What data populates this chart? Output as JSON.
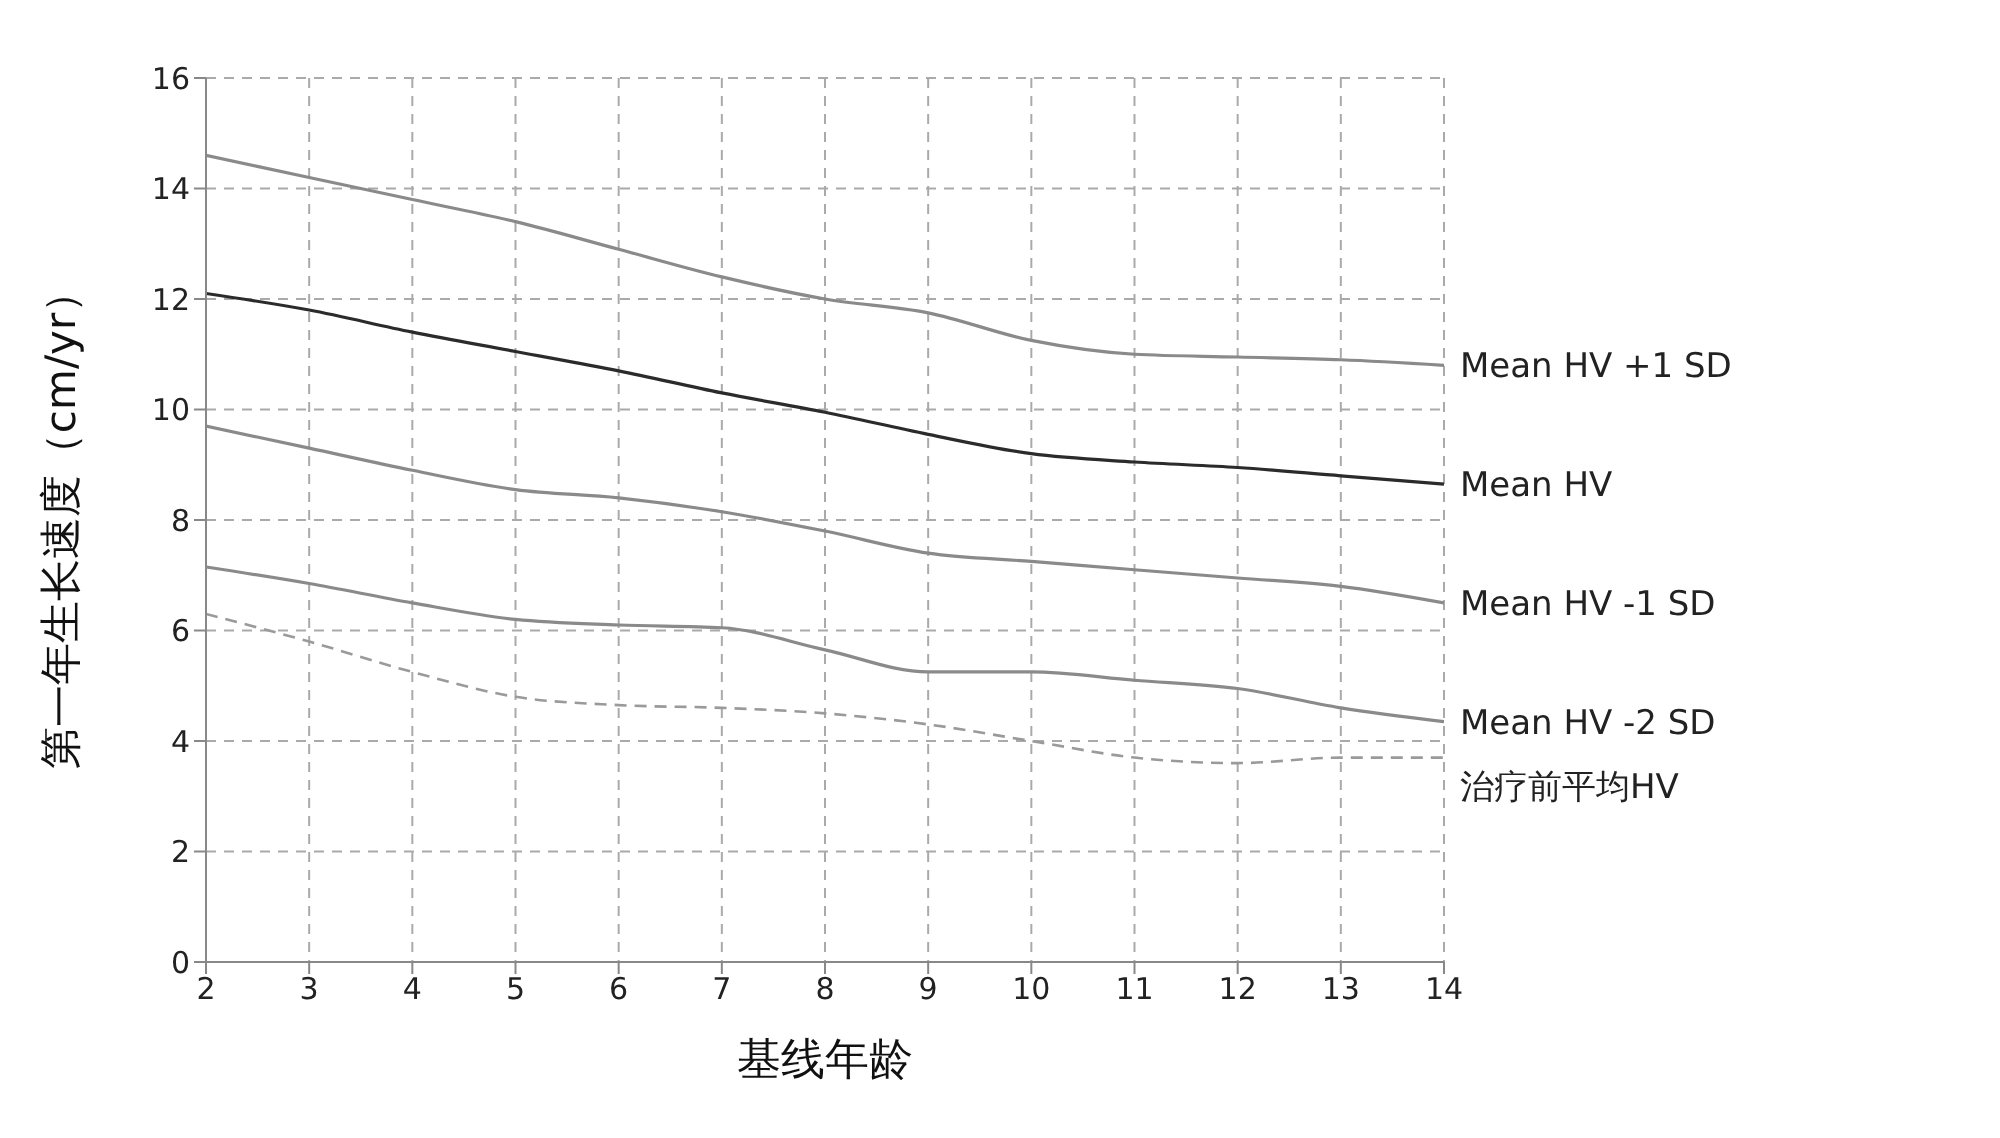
{
  "chart_data": {
    "type": "line",
    "xlabel": "基线年龄",
    "ylabel": "第一年生长速度（cm/yr）",
    "x": [
      2,
      3,
      4,
      5,
      6,
      7,
      8,
      9,
      10,
      11,
      12,
      13,
      14
    ],
    "xlim": [
      2,
      14
    ],
    "xticks": [
      2,
      3,
      4,
      5,
      6,
      7,
      8,
      9,
      10,
      11,
      12,
      13,
      14
    ],
    "ylim": [
      0,
      16
    ],
    "yticks": [
      0,
      2,
      4,
      6,
      8,
      10,
      12,
      14,
      16
    ],
    "grid": true,
    "legend": false,
    "marker": "none",
    "series": [
      {
        "name": "Mean HV +1 SD",
        "color": "#8a8a8a",
        "line_style": "solid",
        "values": [
          14.6,
          14.2,
          13.8,
          13.4,
          12.9,
          12.4,
          12.0,
          11.75,
          11.25,
          11.0,
          10.95,
          10.9,
          10.8
        ]
      },
      {
        "name": "Mean HV",
        "color": "#2b2b2b",
        "line_style": "solid",
        "values": [
          12.1,
          11.8,
          11.4,
          11.05,
          10.7,
          10.3,
          9.95,
          9.55,
          9.2,
          9.05,
          8.95,
          8.8,
          8.65
        ]
      },
      {
        "name": "Mean HV -1 SD",
        "color": "#8a8a8a",
        "line_style": "solid",
        "values": [
          9.7,
          9.3,
          8.9,
          8.55,
          8.4,
          8.15,
          7.8,
          7.4,
          7.25,
          7.1,
          6.95,
          6.8,
          6.5
        ]
      },
      {
        "name": "Mean HV -2 SD",
        "color": "#8a8a8a",
        "line_style": "solid",
        "values": [
          7.15,
          6.85,
          6.5,
          6.2,
          6.1,
          6.05,
          5.65,
          5.25,
          5.25,
          5.1,
          4.95,
          4.6,
          4.35
        ]
      },
      {
        "name": "治疗前平均HV",
        "color": "#9a9a9a",
        "line_style": "dashed",
        "values": [
          6.3,
          5.8,
          5.25,
          4.8,
          4.65,
          4.6,
          4.5,
          4.3,
          4.0,
          3.7,
          3.6,
          3.7,
          3.7
        ]
      }
    ]
  }
}
